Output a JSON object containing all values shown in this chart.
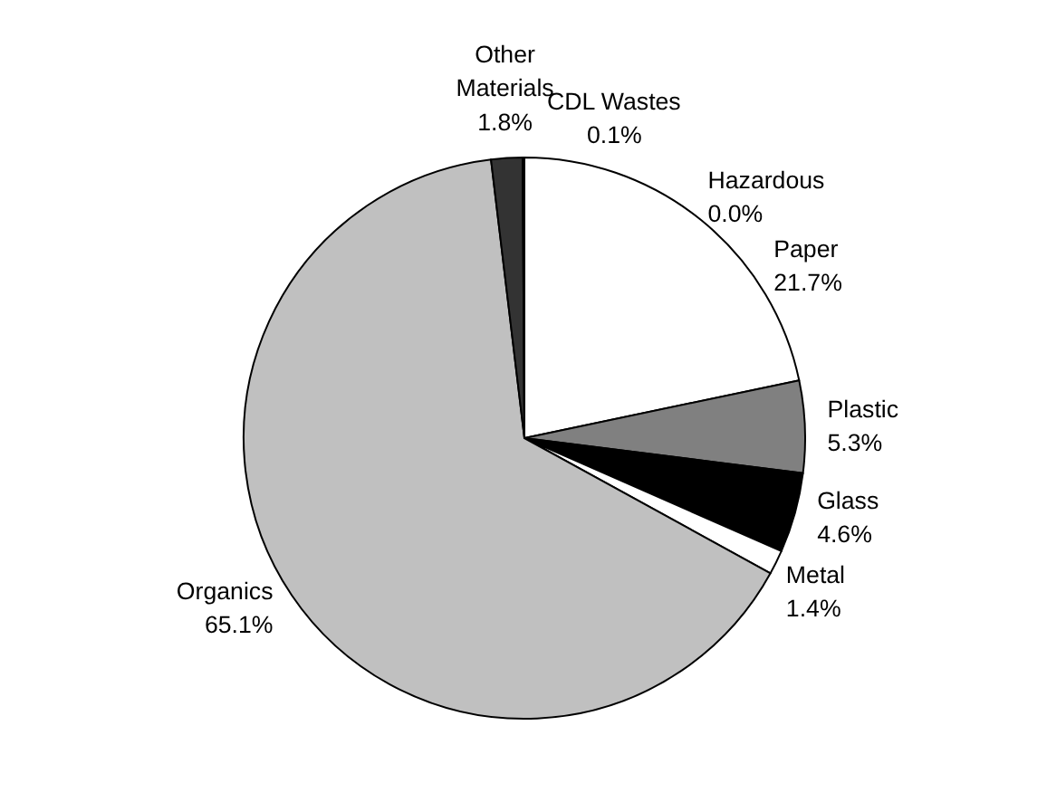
{
  "chart_data": {
    "type": "pie",
    "categories": [
      "Paper",
      "Plastic",
      "Glass",
      "Metal",
      "Organics",
      "Other Materials",
      "CDL Wastes",
      "Hazardous"
    ],
    "values": [
      21.7,
      5.3,
      4.6,
      1.4,
      65.1,
      1.8,
      0.1,
      0.0
    ],
    "colors": [
      "#ffffff",
      "#808080",
      "#000000",
      "#ffffff",
      "#c0c0c0",
      "#333333",
      "#ffffff",
      "#ffffff"
    ],
    "value_labels": [
      "21.7%",
      "5.3%",
      "4.6%",
      "1.4%",
      "65.1%",
      "1.8%",
      "0.1%",
      "0.0%"
    ]
  }
}
